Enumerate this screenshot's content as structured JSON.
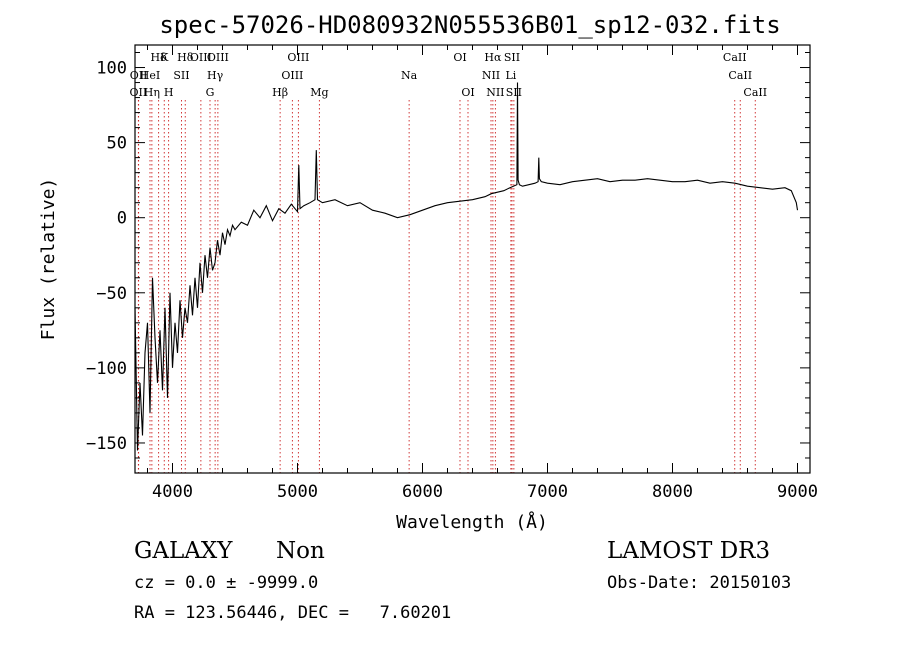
{
  "chart_data": {
    "type": "line",
    "title": "spec-57026-HD080932N055536B01_sp12-032.fits",
    "xlabel": "Wavelength (Å)",
    "ylabel": "Flux (relative)",
    "xlim": [
      3700,
      9100
    ],
    "ylim": [
      -170,
      115
    ],
    "xticks": [
      4000,
      5000,
      6000,
      7000,
      8000,
      9000
    ],
    "xtick_labels": [
      "4000",
      "5000",
      "6000",
      "7000",
      "8000",
      "9000"
    ],
    "yticks": [
      -150,
      -100,
      -50,
      0,
      50,
      100
    ],
    "ytick_labels": [
      "−150",
      "−100",
      "−50",
      "0",
      "50",
      "100"
    ],
    "grid": false,
    "lines": [
      {
        "w": 3727,
        "row": 2,
        "label": "OII"
      },
      {
        "w": 3729,
        "row": 1,
        "label": "OII"
      },
      {
        "w": 3820,
        "row": 1,
        "label": "HeI"
      },
      {
        "w": 3835,
        "row": 2,
        "label": "Hη"
      },
      {
        "w": 3889,
        "row": 0,
        "label": "Hδ"
      },
      {
        "w": 3934,
        "row": 0,
        "label": "K"
      },
      {
        "w": 3969,
        "row": 2,
        "label": "H"
      },
      {
        "w": 4072,
        "row": 1,
        "label": "SII"
      },
      {
        "w": 4102,
        "row": 0,
        "label": "Hδ"
      },
      {
        "w": 4227,
        "row": 0,
        "label": "OIII"
      },
      {
        "w": 4300,
        "row": 2,
        "label": "G"
      },
      {
        "w": 4341,
        "row": 1,
        "label": "Hγ"
      },
      {
        "w": 4363,
        "row": 0,
        "label": "OIII"
      },
      {
        "w": 4861,
        "row": 2,
        "label": "Hβ"
      },
      {
        "w": 4959,
        "row": 1,
        "label": "OIII"
      },
      {
        "w": 5007,
        "row": 0,
        "label": "OIII"
      },
      {
        "w": 5175,
        "row": 2,
        "label": "Mg"
      },
      {
        "w": 5893,
        "row": 1,
        "label": "Na"
      },
      {
        "w": 6300,
        "row": 0,
        "label": "OI"
      },
      {
        "w": 6364,
        "row": 2,
        "label": "OI"
      },
      {
        "w": 6548,
        "row": 1,
        "label": "NII"
      },
      {
        "w": 6563,
        "row": 0,
        "label": "Hα"
      },
      {
        "w": 6583,
        "row": 2,
        "label": "NII"
      },
      {
        "w": 6707,
        "row": 1,
        "label": "Li"
      },
      {
        "w": 6716,
        "row": 0,
        "label": "SII"
      },
      {
        "w": 6731,
        "row": 2,
        "label": "SII"
      },
      {
        "w": 8498,
        "row": 0,
        "label": "CaII"
      },
      {
        "w": 8542,
        "row": 1,
        "label": "CaII"
      },
      {
        "w": 8662,
        "row": 2,
        "label": "CaII"
      }
    ],
    "series": [
      {
        "x": [
          3700,
          3720,
          3740,
          3760,
          3780,
          3800,
          3820,
          3840,
          3860,
          3880,
          3900,
          3920,
          3940,
          3960,
          3980,
          4000,
          4020,
          4040,
          4060,
          4080,
          4100,
          4120,
          4140,
          4160,
          4180,
          4200,
          4220,
          4240,
          4260,
          4280,
          4300,
          4320,
          4340,
          4360,
          4380,
          4400,
          4420,
          4440,
          4460,
          4480,
          4500,
          4550,
          4600,
          4650,
          4700,
          4750,
          4800,
          4850,
          4900,
          4950,
          5000,
          5010,
          5020,
          5050,
          5100,
          5140,
          5150,
          5160,
          5200,
          5300,
          5400,
          5500,
          5600,
          5700,
          5800,
          5900,
          6000,
          6100,
          6200,
          6300,
          6400,
          6500,
          6550,
          6600,
          6650,
          6700,
          6755,
          6760,
          6765,
          6775,
          6800,
          6850,
          6900,
          6925,
          6930,
          6935,
          6950,
          7000,
          7100,
          7200,
          7300,
          7400,
          7500,
          7600,
          7700,
          7800,
          7900,
          8000,
          8100,
          8200,
          8300,
          8400,
          8500,
          8600,
          8700,
          8800,
          8900,
          8950,
          8990,
          9000
        ],
        "y": [
          -60,
          -155,
          -110,
          -145,
          -90,
          -70,
          -130,
          -40,
          -80,
          -110,
          -75,
          -115,
          -60,
          -120,
          -50,
          -100,
          -70,
          -90,
          -55,
          -80,
          -60,
          -70,
          -45,
          -65,
          -40,
          -60,
          -30,
          -50,
          -25,
          -40,
          -20,
          -35,
          -30,
          -15,
          -25,
          -10,
          -18,
          -8,
          -12,
          -5,
          -8,
          -3,
          -5,
          5,
          0,
          8,
          -2,
          6,
          3,
          9,
          4,
          35,
          6,
          8,
          10,
          12,
          45,
          12,
          10,
          12,
          8,
          10,
          5,
          3,
          0,
          2,
          5,
          8,
          10,
          11,
          12,
          14,
          16,
          17,
          18,
          20,
          22,
          90,
          25,
          22,
          21,
          22,
          23,
          24,
          40,
          26,
          24,
          23,
          22,
          24,
          25,
          26,
          24,
          25,
          25,
          26,
          25,
          24,
          24,
          25,
          23,
          24,
          23,
          21,
          20,
          19,
          20,
          18,
          10,
          5
        ]
      }
    ]
  },
  "footer": {
    "object_type": "GALAXY",
    "object_subtype": "Non",
    "cz_line": "cz = 0.0 ± -9999.0",
    "coords_line": "RA = 123.56446, DEC =   7.60201",
    "survey": "LAMOST DR3",
    "obs_date": "Obs-Date: 20150103"
  }
}
